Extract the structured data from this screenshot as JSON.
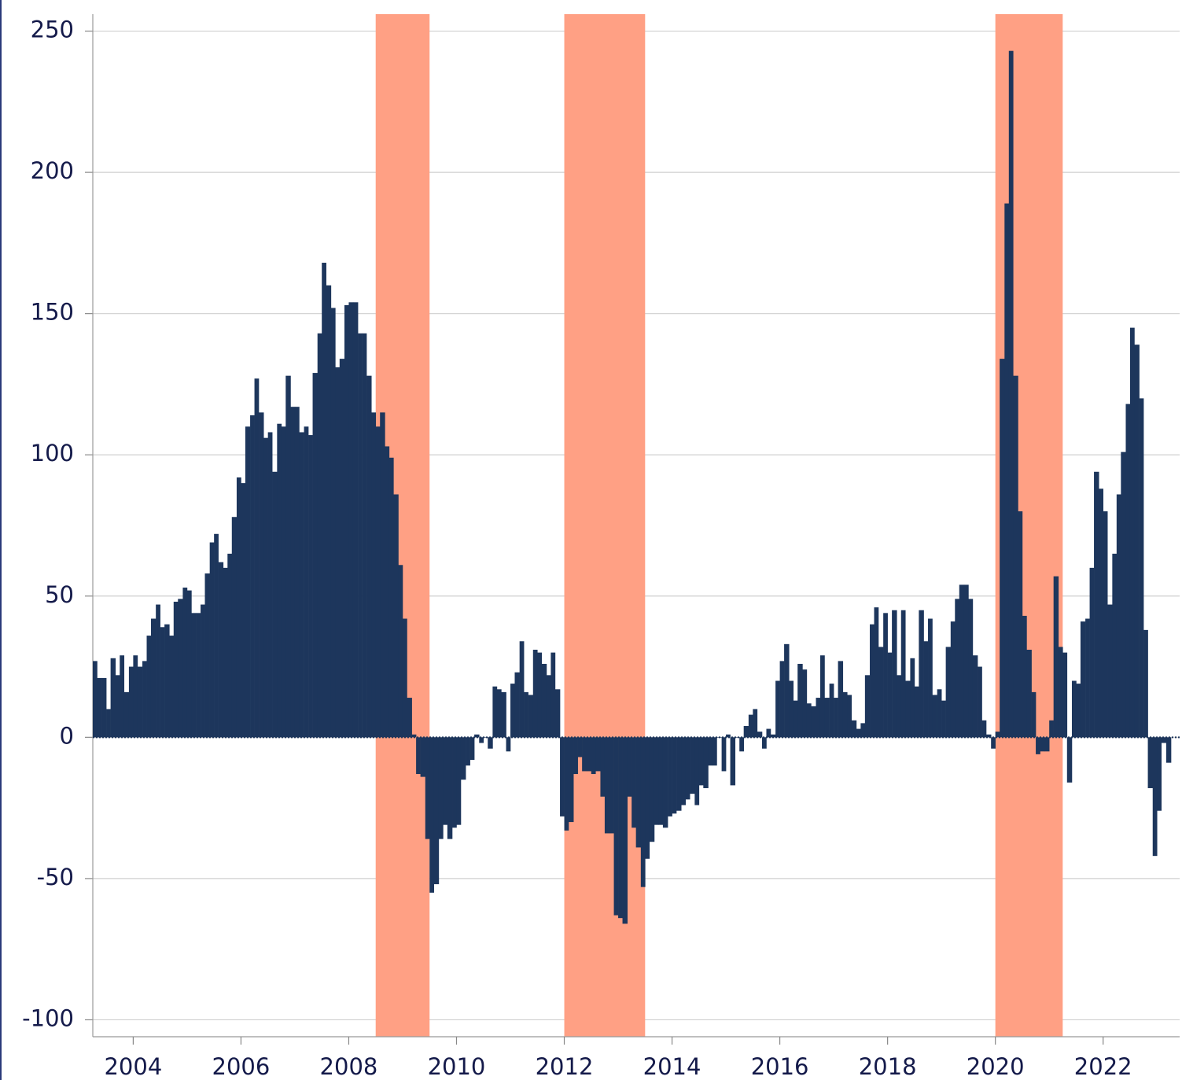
{
  "chart_data": {
    "type": "bar",
    "color": "#1d365c",
    "shade_color": "#ffa084",
    "grid": true,
    "xlim": [
      2003.25,
      2023.42
    ],
    "ylim": [
      -106,
      256
    ],
    "xticks": [
      2004,
      2006,
      2008,
      2010,
      2012,
      2014,
      2016,
      2018,
      2020,
      2022
    ],
    "yticks": [
      -100,
      -50,
      0,
      50,
      100,
      150,
      200,
      250
    ],
    "shaded_regions": [
      {
        "start": 2008.5,
        "end": 2009.5
      },
      {
        "start": 2012.0,
        "end": 2013.5
      },
      {
        "start": 2020.0,
        "end": 2021.25
      }
    ],
    "x": [
      2003.25,
      2003.33,
      2003.42,
      2003.5,
      2003.58,
      2003.67,
      2003.75,
      2003.83,
      2003.92,
      2004,
      2004.08,
      2004.17,
      2004.25,
      2004.33,
      2004.42,
      2004.5,
      2004.58,
      2004.67,
      2004.75,
      2004.83,
      2004.92,
      2005,
      2005.08,
      2005.17,
      2005.25,
      2005.33,
      2005.42,
      2005.5,
      2005.58,
      2005.67,
      2005.75,
      2005.83,
      2005.92,
      2006,
      2006.08,
      2006.17,
      2006.25,
      2006.33,
      2006.42,
      2006.5,
      2006.58,
      2006.67,
      2006.75,
      2006.83,
      2006.92,
      2007,
      2007.08,
      2007.17,
      2007.25,
      2007.33,
      2007.42,
      2007.5,
      2007.58,
      2007.67,
      2007.75,
      2007.83,
      2007.92,
      2008,
      2008.08,
      2008.17,
      2008.25,
      2008.33,
      2008.42,
      2008.5,
      2008.58,
      2008.67,
      2008.75,
      2008.83,
      2008.92,
      2009,
      2009.08,
      2009.17,
      2009.25,
      2009.33,
      2009.42,
      2009.5,
      2009.58,
      2009.67,
      2009.75,
      2009.83,
      2009.92,
      2010,
      2010.08,
      2010.17,
      2010.25,
      2010.33,
      2010.42,
      2010.5,
      2010.58,
      2010.67,
      2010.75,
      2010.83,
      2010.92,
      2011,
      2011.08,
      2011.17,
      2011.25,
      2011.33,
      2011.42,
      2011.5,
      2011.58,
      2011.67,
      2011.75,
      2011.83,
      2011.92,
      2012,
      2012.08,
      2012.17,
      2012.25,
      2012.33,
      2012.42,
      2012.5,
      2012.58,
      2012.67,
      2012.75,
      2012.83,
      2012.92,
      2013,
      2013.08,
      2013.17,
      2013.25,
      2013.33,
      2013.42,
      2013.5,
      2013.58,
      2013.67,
      2013.75,
      2013.83,
      2013.92,
      2014,
      2014.08,
      2014.17,
      2014.25,
      2014.33,
      2014.42,
      2014.5,
      2014.58,
      2014.67,
      2014.75,
      2014.83,
      2014.92,
      2015,
      2015.08,
      2015.17,
      2015.25,
      2015.33,
      2015.42,
      2015.5,
      2015.58,
      2015.67,
      2015.75,
      2015.83,
      2015.92,
      2016,
      2016.08,
      2016.17,
      2016.25,
      2016.33,
      2016.42,
      2016.5,
      2016.58,
      2016.67,
      2016.75,
      2016.83,
      2016.92,
      2017,
      2017.08,
      2017.17,
      2017.25,
      2017.33,
      2017.42,
      2017.5,
      2017.58,
      2017.67,
      2017.75,
      2017.83,
      2017.92,
      2018,
      2018.08,
      2018.17,
      2018.25,
      2018.33,
      2018.42,
      2018.5,
      2018.58,
      2018.67,
      2018.75,
      2018.83,
      2018.92,
      2019,
      2019.08,
      2019.17,
      2019.25,
      2019.33,
      2019.42,
      2019.5,
      2019.58,
      2019.67,
      2019.75,
      2019.83,
      2019.92,
      2020,
      2020.08,
      2020.17,
      2020.25,
      2020.33,
      2020.42,
      2020.5,
      2020.58,
      2020.67,
      2020.75,
      2020.83,
      2020.92,
      2021,
      2021.08,
      2021.17,
      2021.25,
      2021.33,
      2021.42,
      2021.5,
      2021.58,
      2021.67,
      2021.75,
      2021.83,
      2021.92,
      2022,
      2022.08,
      2022.17,
      2022.25,
      2022.33,
      2022.42,
      2022.5,
      2022.58,
      2022.67,
      2022.75,
      2022.83,
      2022.92,
      2023,
      2023.08,
      2023.17
    ],
    "values": [
      27,
      21,
      21,
      10,
      28,
      22,
      29,
      16,
      25,
      29,
      25,
      27,
      36,
      42,
      47,
      39,
      40,
      36,
      48,
      49,
      53,
      52,
      44,
      44,
      47,
      58,
      69,
      72,
      62,
      60,
      65,
      78,
      92,
      90,
      110,
      114,
      127,
      115,
      106,
      108,
      94,
      111,
      110,
      128,
      117,
      117,
      108,
      110,
      107,
      129,
      143,
      168,
      160,
      152,
      131,
      134,
      153,
      154,
      154,
      143,
      143,
      128,
      115,
      110,
      115,
      103,
      99,
      86,
      61,
      42,
      14,
      1,
      -13,
      -14,
      -36,
      -55,
      -52,
      -36,
      -31,
      -36,
      -32,
      -31,
      -15,
      -10,
      -8,
      1,
      -2,
      0,
      -4,
      18,
      17,
      16,
      -5,
      19,
      23,
      34,
      16,
      15,
      31,
      30,
      26,
      22,
      30,
      17,
      -28,
      -33,
      -30,
      -13,
      -7,
      -12,
      -12,
      -13,
      -12,
      -21,
      -34,
      -34,
      -63,
      -64,
      -66,
      -21,
      -32,
      -39,
      -53,
      -43,
      -37,
      -31,
      -31,
      -32,
      -28,
      -27,
      -26,
      -24,
      -22,
      -20,
      -24,
      -17,
      -18,
      -10,
      -10,
      0,
      -12,
      1,
      -17,
      0,
      -5,
      4,
      8,
      10,
      2,
      -4,
      3,
      1,
      20,
      27,
      33,
      20,
      13,
      26,
      24,
      12,
      11,
      14,
      29,
      14,
      19,
      14,
      27,
      16,
      15,
      6,
      3,
      5,
      22,
      40,
      46,
      32,
      44,
      30,
      45,
      22,
      45,
      20,
      28,
      18,
      45,
      34,
      42,
      15,
      17,
      13,
      32,
      41,
      49,
      54,
      54,
      49,
      29,
      25,
      6,
      1,
      -4,
      2,
      134,
      189,
      243,
      128,
      80,
      43,
      31,
      16,
      -6,
      -5,
      -5,
      6,
      57,
      32,
      30,
      -16,
      20,
      19,
      41,
      42,
      60,
      94,
      88,
      80,
      47,
      65,
      86,
      101,
      118,
      145,
      139,
      120,
      38,
      -18,
      -42,
      -26,
      -2,
      -9
    ]
  }
}
